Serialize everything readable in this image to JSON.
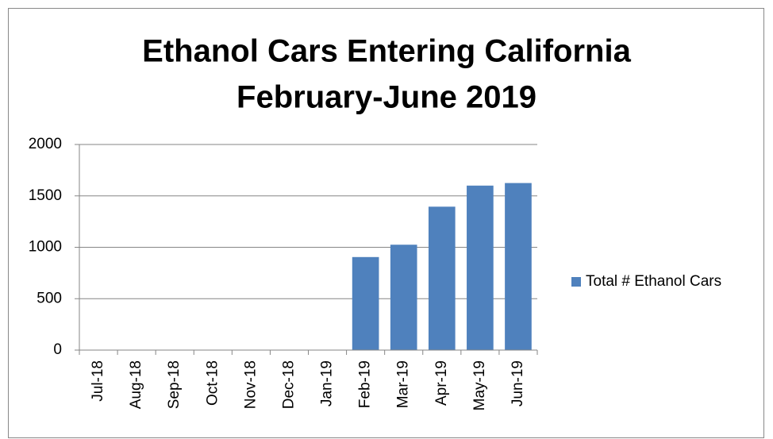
{
  "chart_data": {
    "type": "bar",
    "title": [
      "Ethanol Cars Entering California",
      "February-June 2019"
    ],
    "categories": [
      "Jul-18",
      "Aug-18",
      "Sep-18",
      "Oct-18",
      "Nov-18",
      "Dec-18",
      "Jan-19",
      "Feb-19",
      "Mar-19",
      "Apr-19",
      "May-19",
      "Jun-19"
    ],
    "series": [
      {
        "name": "Total # Ethanol Cars",
        "color": "#4f81bd",
        "values": [
          null,
          null,
          null,
          null,
          null,
          null,
          null,
          905,
          1025,
          1395,
          1600,
          1625
        ]
      }
    ],
    "ylim": [
      0,
      2000
    ],
    "yticks": [
      0,
      500,
      1000,
      1500,
      2000
    ],
    "grid": true,
    "legend": "right"
  }
}
